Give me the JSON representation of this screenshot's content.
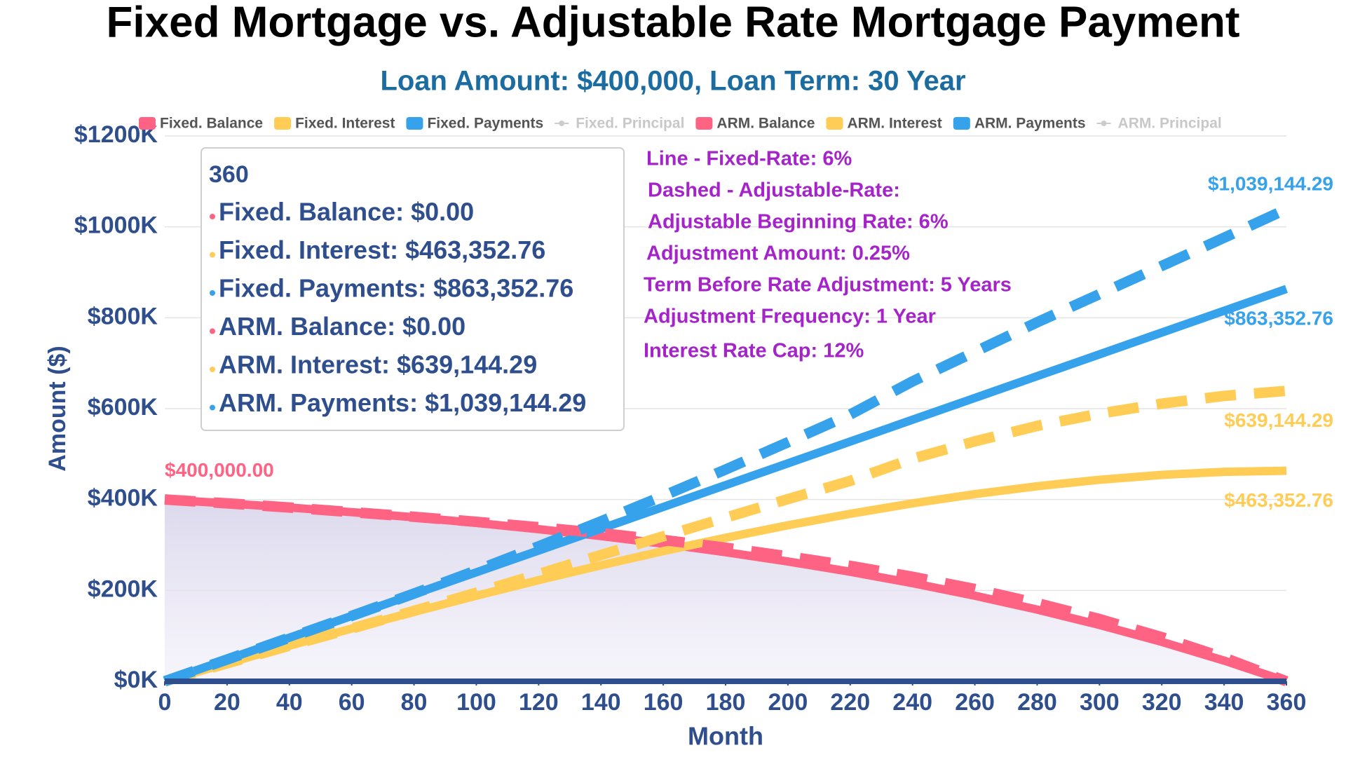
{
  "chart_data": {
    "type": "line",
    "title": "Fixed Mortgage vs. Adjustable Rate Mortgage Payment",
    "subtitle": "Loan Amount: $400,000, Loan Term: 30 Year",
    "x_label": "Month",
    "y_label": "Amount ($)",
    "x": [
      0,
      20,
      40,
      60,
      80,
      100,
      120,
      140,
      160,
      180,
      200,
      220,
      240,
      260,
      280,
      300,
      320,
      340,
      360
    ],
    "xlim": [
      0,
      360
    ],
    "xticks": [
      0,
      20,
      40,
      60,
      80,
      100,
      120,
      140,
      160,
      180,
      200,
      220,
      240,
      260,
      280,
      300,
      320,
      340,
      360
    ],
    "ylim": [
      0,
      1200000
    ],
    "yticks": [
      {
        "value": 0,
        "label": "$0K"
      },
      {
        "value": 200000,
        "label": "$200K"
      },
      {
        "value": 400000,
        "label": "$400K"
      },
      {
        "value": 600000,
        "label": "$600K"
      },
      {
        "value": 800000,
        "label": "$800K"
      },
      {
        "value": 1000000,
        "label": "$1000K"
      },
      {
        "value": 1200000,
        "label": "$1200K"
      }
    ],
    "grid": true,
    "series": [
      {
        "name": "Fixed. Balance",
        "color": "#ff6384",
        "dashed": false,
        "area": true,
        "values": [
          400000,
          391646,
          382416,
          372218,
          360949,
          348499,
          334743,
          319544,
          302750,
          284196,
          263695,
          241043,
          216016,
          188363,
          157809,
          124050,
          86750,
          45537,
          0
        ],
        "value_labels": [
          "$400,000.00",
          null,
          null,
          null,
          null,
          null,
          null,
          null,
          null,
          null,
          null,
          null,
          null,
          null,
          null,
          null,
          null,
          null,
          null
        ]
      },
      {
        "name": "Fixed. Interest",
        "color": "#ffcd56",
        "dashed": false,
        "values": [
          0,
          39610,
          78344,
          116110,
          152805,
          188319,
          222527,
          255292,
          286462,
          315872,
          343335,
          368647,
          391584,
          411895,
          429305,
          443510,
          454174,
          460925,
          463352.76
        ],
        "value_labels": [
          null,
          null,
          null,
          null,
          null,
          null,
          null,
          null,
          null,
          null,
          null,
          null,
          null,
          null,
          null,
          null,
          null,
          null,
          "$463,352.76"
        ]
      },
      {
        "name": "Fixed. Payments",
        "color": "#36a2eb",
        "dashed": false,
        "values": [
          0,
          47964,
          95928,
          143892,
          191856,
          239820,
          287784,
          335748,
          383712,
          431676,
          479640,
          527604,
          575568,
          623532,
          671496,
          719460,
          767424,
          815388,
          863352.76
        ],
        "value_labels": [
          null,
          null,
          null,
          null,
          null,
          null,
          null,
          null,
          null,
          null,
          null,
          null,
          null,
          null,
          null,
          null,
          null,
          null,
          "$863,352.76"
        ]
      },
      {
        "name": "Fixed. Principal",
        "visible": false
      },
      {
        "name": "ARM. Balance",
        "color": "#ff6384",
        "dashed": true,
        "values": [
          400000,
          391646,
          382416,
          372218,
          362000,
          351000,
          339000,
          326000,
          311000,
          294000,
          275000,
          254000,
          230000,
          203000,
          172000,
          137000,
          97000,
          52000,
          0
        ]
      },
      {
        "name": "ARM. Interest",
        "color": "#ffcd56",
        "dashed": true,
        "values": [
          0,
          39610,
          78344,
          116110,
          155000,
          195000,
          236000,
          278000,
          319000,
          360000,
          401000,
          441000,
          490000,
          528000,
          562000,
          589000,
          611000,
          628000,
          639144.29
        ],
        "value_labels": [
          null,
          null,
          null,
          null,
          null,
          null,
          null,
          null,
          null,
          null,
          null,
          null,
          null,
          null,
          null,
          null,
          null,
          null,
          "$639,144.29"
        ]
      },
      {
        "name": "ARM. Payments",
        "color": "#36a2eb",
        "dashed": true,
        "values": [
          0,
          47964,
          95928,
          143892,
          193000,
          244000,
          297000,
          352000,
          408000,
          466000,
          526000,
          587000,
          660000,
          725000,
          790000,
          852000,
          914000,
          976000,
          1039144.29
        ],
        "value_labels": [
          null,
          null,
          null,
          null,
          null,
          null,
          null,
          null,
          null,
          null,
          null,
          null,
          null,
          null,
          null,
          null,
          null,
          null,
          "$1,039,144.29"
        ]
      },
      {
        "name": "ARM. Principal",
        "visible": false
      }
    ],
    "annotations": [
      "Line - Fixed-Rate: 6%",
      "Dashed - Adjustable-Rate:",
      "Adjustable Beginning Rate: 6%",
      "Adjustment Amount: 0.25%",
      "Term Before Rate Adjustment: 5 Years",
      "Adjustment Frequency: 1 Year",
      "Interest Rate Cap: 12%"
    ],
    "annotation_color": "#a524c9",
    "tooltip": {
      "title": "360",
      "rows": [
        "Fixed. Balance: $0.00",
        "Fixed. Interest: $463,352.76",
        "Fixed. Payments: $863,352.76",
        "ARM. Balance: $0.00",
        "ARM. Interest: $639,144.29",
        "ARM. Payments: $1,039,144.29"
      ]
    }
  }
}
